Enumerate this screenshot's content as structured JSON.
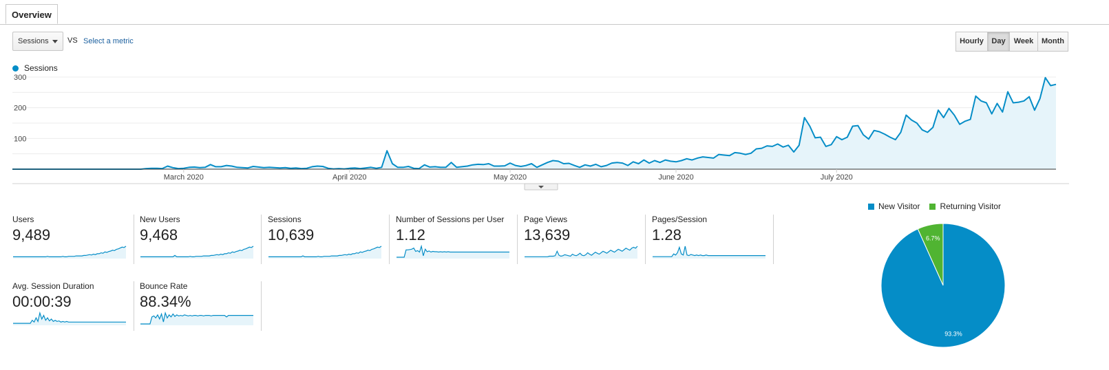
{
  "tab": {
    "label": "Overview"
  },
  "metric_selector": {
    "value": "Sessions",
    "vs_label": "VS",
    "link": "Select a metric"
  },
  "granularity": {
    "buttons": [
      {
        "label": "Hourly",
        "active": false
      },
      {
        "label": "Day",
        "active": true
      },
      {
        "label": "Week",
        "active": false
      },
      {
        "label": "Month",
        "active": false
      }
    ]
  },
  "colors": {
    "series": "#058dc7",
    "fill": "#e6f4fa",
    "returning": "#50b432"
  },
  "chart_data": [
    {
      "type": "area",
      "series": [
        {
          "name": "Sessions",
          "values": [
            0,
            0,
            0,
            0,
            0,
            0,
            0,
            0,
            0,
            0,
            0,
            0,
            0,
            0,
            0,
            0,
            0,
            0,
            0,
            0,
            0,
            0,
            0,
            0,
            0,
            2,
            3,
            3,
            2,
            10,
            5,
            2,
            3,
            6,
            7,
            5,
            6,
            15,
            8,
            8,
            12,
            10,
            6,
            5,
            4,
            9,
            7,
            5,
            6,
            5,
            4,
            5,
            3,
            4,
            2,
            3,
            8,
            10,
            9,
            3,
            1,
            2,
            1,
            3,
            4,
            2,
            4,
            6,
            3,
            6,
            60,
            18,
            6,
            6,
            9,
            3,
            2,
            14,
            7,
            8,
            6,
            6,
            22,
            6,
            8,
            10,
            14,
            16,
            15,
            18,
            10,
            10,
            11,
            20,
            12,
            9,
            12,
            18,
            6,
            14,
            22,
            28,
            26,
            18,
            19,
            12,
            6,
            14,
            10,
            16,
            8,
            12,
            20,
            22,
            20,
            12,
            24,
            18,
            30,
            20,
            28,
            22,
            30,
            26,
            24,
            28,
            34,
            30,
            36,
            40,
            38,
            36,
            48,
            46,
            44,
            54,
            52,
            48,
            52,
            66,
            68,
            76,
            74,
            82,
            72,
            78,
            56,
            78,
            168,
            140,
            102,
            104,
            74,
            80,
            106,
            96,
            104,
            140,
            142,
            112,
            98,
            126,
            122,
            114,
            104,
            96,
            120,
            176,
            160,
            150,
            128,
            120,
            136,
            192,
            168,
            198,
            176,
            146,
            156,
            162,
            238,
            222,
            216,
            180,
            214,
            186,
            252,
            216,
            218,
            222,
            236,
            192,
            230,
            298,
            272,
            276
          ]
        }
      ],
      "ylim": [
        0,
        300
      ],
      "y_ticks": [
        "100",
        "200",
        "300"
      ],
      "x_ticks": [
        {
          "label": "March 2020",
          "index": 32
        },
        {
          "label": "April 2020",
          "index": 63
        },
        {
          "label": "May 2020",
          "index": 93
        },
        {
          "label": "June 2020",
          "index": 124
        },
        {
          "label": "July 2020",
          "index": 154
        }
      ],
      "grid": true,
      "legend": "top-left"
    },
    {
      "type": "pie",
      "slices": [
        {
          "label": "New Visitor",
          "value": 93.3,
          "display": "93.3%",
          "color": "#058dc7"
        },
        {
          "label": "Returning Visitor",
          "value": 6.7,
          "display": "6.7%",
          "color": "#50b432"
        }
      ],
      "legend": "top"
    }
  ],
  "scorecards": [
    {
      "label": "Users",
      "value": "9,489",
      "spark": [
        1,
        1,
        1,
        1,
        1,
        1,
        1,
        1,
        1,
        1,
        1,
        1,
        1,
        1,
        1,
        1,
        1,
        1,
        2,
        1,
        1,
        1,
        1,
        1,
        1,
        1,
        2,
        1,
        1,
        2,
        2,
        2,
        2,
        3,
        3,
        3,
        3,
        4,
        4,
        5,
        6,
        5,
        7,
        6,
        8,
        8,
        10,
        9,
        12,
        11,
        13,
        14,
        16,
        15,
        18,
        19,
        21,
        23,
        22,
        25
      ]
    },
    {
      "label": "New Users",
      "value": "9,468",
      "spark": [
        1,
        1,
        1,
        1,
        1,
        1,
        1,
        1,
        1,
        1,
        1,
        1,
        1,
        1,
        1,
        1,
        1,
        1,
        4,
        1,
        1,
        1,
        1,
        1,
        1,
        1,
        2,
        1,
        1,
        2,
        2,
        2,
        2,
        3,
        3,
        3,
        3,
        4,
        4,
        5,
        6,
        5,
        7,
        6,
        8,
        8,
        10,
        9,
        12,
        11,
        13,
        14,
        16,
        15,
        18,
        19,
        21,
        23,
        22,
        25
      ]
    },
    {
      "label": "Sessions",
      "value": "10,639",
      "spark": [
        1,
        1,
        1,
        1,
        1,
        1,
        1,
        1,
        1,
        1,
        1,
        1,
        1,
        1,
        1,
        1,
        1,
        1,
        3,
        1,
        1,
        1,
        1,
        1,
        1,
        1,
        2,
        1,
        1,
        2,
        2,
        2,
        2,
        3,
        3,
        3,
        3,
        4,
        4,
        5,
        6,
        5,
        7,
        6,
        8,
        8,
        10,
        9,
        12,
        11,
        13,
        14,
        16,
        15,
        18,
        19,
        21,
        23,
        22,
        25
      ]
    },
    {
      "label": "Number of Sessions per User",
      "value": "1.12",
      "spark": [
        0,
        0,
        0,
        0,
        0,
        20,
        20,
        21,
        22,
        25,
        16,
        18,
        14,
        30,
        4,
        22,
        15,
        17,
        14,
        16,
        15,
        15,
        14,
        15,
        14,
        15,
        14,
        15,
        14,
        14,
        14,
        14,
        14,
        14,
        14,
        14,
        14,
        14,
        14,
        14,
        14,
        14,
        14,
        14,
        14,
        14,
        14,
        14,
        14,
        14,
        14,
        14,
        14,
        14,
        14,
        14,
        14,
        14,
        14,
        14
      ]
    },
    {
      "label": "Page Views",
      "value": "13,639",
      "spark": [
        1,
        1,
        1,
        1,
        1,
        1,
        1,
        1,
        1,
        1,
        1,
        1,
        1,
        2,
        2,
        2,
        3,
        12,
        4,
        2,
        3,
        5,
        4,
        3,
        2,
        6,
        4,
        3,
        5,
        8,
        4,
        3,
        5,
        9,
        6,
        4,
        7,
        10,
        8,
        6,
        9,
        12,
        10,
        8,
        11,
        14,
        12,
        10,
        13,
        16,
        14,
        12,
        15,
        18,
        16,
        14,
        18,
        20,
        18,
        22
      ]
    },
    {
      "label": "Pages/Session",
      "value": "1.28",
      "spark": [
        1,
        1,
        1,
        1,
        1,
        1,
        1,
        1,
        1,
        1,
        1,
        6,
        4,
        8,
        18,
        6,
        4,
        20,
        4,
        3,
        5,
        4,
        3,
        4,
        3,
        4,
        3,
        3,
        4,
        3,
        3,
        3,
        3,
        3,
        3,
        3,
        3,
        3,
        3,
        3,
        3,
        3,
        3,
        3,
        3,
        3,
        3,
        3,
        3,
        3,
        3,
        3,
        3,
        3,
        3,
        3,
        3,
        3,
        3,
        3
      ]
    },
    {
      "label": "Avg. Session Duration",
      "value": "00:00:39",
      "spark": [
        1,
        1,
        1,
        1,
        1,
        1,
        1,
        1,
        1,
        1,
        6,
        3,
        10,
        4,
        18,
        8,
        14,
        6,
        10,
        5,
        8,
        4,
        6,
        4,
        5,
        3,
        4,
        3,
        4,
        3,
        3,
        3,
        3,
        3,
        3,
        3,
        3,
        3,
        3,
        3,
        3,
        3,
        3,
        3,
        3,
        3,
        3,
        3,
        3,
        3,
        3,
        3,
        3,
        3,
        3,
        3,
        3,
        3,
        3,
        3
      ]
    },
    {
      "label": "Bounce Rate",
      "value": "88.34%",
      "spark": [
        0,
        0,
        0,
        0,
        0,
        0,
        14,
        16,
        12,
        18,
        10,
        20,
        4,
        22,
        12,
        18,
        14,
        20,
        15,
        18,
        16,
        17,
        16,
        18,
        17,
        16,
        17,
        16,
        17,
        17,
        16,
        17,
        17,
        16,
        17,
        17,
        17,
        16,
        17,
        17,
        17,
        17,
        17,
        17,
        17,
        14,
        17,
        17,
        17,
        17,
        17,
        17,
        17,
        17,
        17,
        17,
        17,
        17,
        17,
        17
      ]
    }
  ]
}
